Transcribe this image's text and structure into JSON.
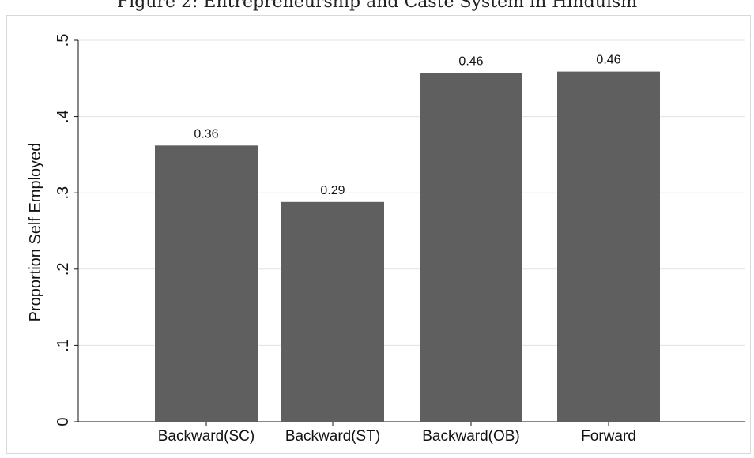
{
  "chart_data": {
    "type": "bar",
    "title": "Figure 2: Entrepreneurship and Caste System in Hinduism",
    "ylabel": "Proportion Self Employed",
    "xlabel": "",
    "ylim": [
      0,
      0.5
    ],
    "yticks": [
      {
        "value": 0,
        "label": "0"
      },
      {
        "value": 0.1,
        "label": ".1"
      },
      {
        "value": 0.2,
        "label": ".2"
      },
      {
        "value": 0.3,
        "label": ".3"
      },
      {
        "value": 0.4,
        "label": ".4"
      },
      {
        "value": 0.5,
        "label": ".5"
      }
    ],
    "categories": [
      "Backward(SC)",
      "Backward(ST)",
      "Backward(OB)",
      "Forward"
    ],
    "values": [
      0.362,
      0.288,
      0.457,
      0.459
    ],
    "data_labels": [
      "0.36",
      "0.29",
      "0.46",
      "0.46"
    ],
    "grid": true,
    "bar_color": "#5f5f5f",
    "grid_color": "#e3e3e3"
  }
}
